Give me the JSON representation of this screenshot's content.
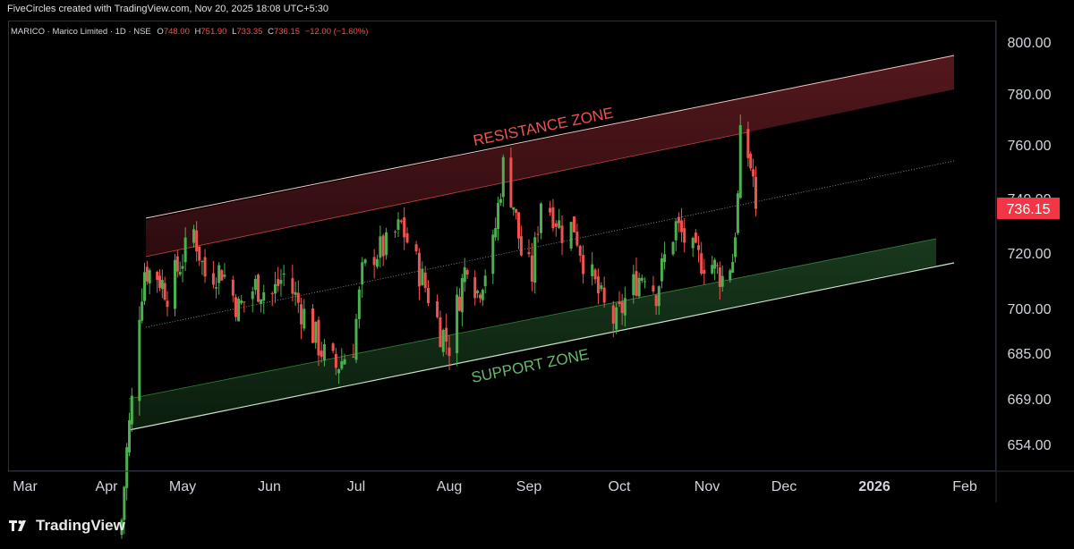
{
  "header": {
    "attribution": "FiveCircles created with TradingView.com, Nov 20, 2025 18:08 UTC+5:30"
  },
  "legend": {
    "symbol": "MARICO · Marico Limited · 1D · NSE",
    "open_label": "O",
    "open": "748.00",
    "high_label": "H",
    "high": "751.90",
    "low_label": "L",
    "low": "733.35",
    "close_label": "C",
    "close": "736.15",
    "change": "−12.00 (−1.60%)"
  },
  "annotations": {
    "resistance": "RESISTANCE ZONE",
    "support": "SUPPORT ZONE"
  },
  "price_label": "736.15",
  "footer": {
    "brand": "TradingView"
  },
  "colors": {
    "up": "#26a69a",
    "up_candle": "#4caf50",
    "down": "#ef5350",
    "resistance_fill": "#5c1a1f",
    "support_fill": "#163d1c",
    "price_badge": "#f23645"
  },
  "chart_data": {
    "type": "candlestick",
    "title": "MARICO · Marico Limited · 1D · NSE",
    "x_tick_labels": [
      "Mar",
      "Apr",
      "May",
      "Jun",
      "Jul",
      "Aug",
      "Sep",
      "Oct",
      "Nov",
      "Dec",
      "2026",
      "Feb"
    ],
    "y_tick_labels": [
      "800.00",
      "780.00",
      "760.00",
      "740.00",
      "720.00",
      "700.00",
      "685.00",
      "669.00",
      "654.00"
    ],
    "y_scale": "log",
    "ylim": [
      640,
      815
    ],
    "grid": false,
    "last_price": 736.15,
    "resistance_zone": {
      "lower_line": [
        [
          "2025-04-20",
          720
        ],
        [
          "2026-01-26",
          782
        ]
      ],
      "upper_line": [
        [
          "2025-04-20",
          732
        ],
        [
          "2026-01-26",
          795
        ]
      ]
    },
    "support_zone": {
      "upper_line": [
        [
          "2025-04-07",
          669
        ],
        [
          "2026-01-26",
          726
        ]
      ],
      "lower_line": [
        [
          "2025-04-07",
          661
        ],
        [
          "2026-01-26",
          717
        ]
      ]
    },
    "midline": [
      [
        "2025-04-20",
        696
      ],
      [
        "2026-01-26",
        754
      ]
    ],
    "candles_approx_close": [
      [
        "2025-04-07",
        630
      ],
      [
        "2025-04-09",
        652
      ],
      [
        "2025-04-11",
        668
      ],
      [
        "2025-04-14",
        700
      ],
      [
        "2025-04-16",
        714
      ],
      [
        "2025-04-21",
        712
      ],
      [
        "2025-04-25",
        706
      ],
      [
        "2025-05-01",
        718
      ],
      [
        "2025-05-05",
        728
      ],
      [
        "2025-05-09",
        712
      ],
      [
        "2025-05-15",
        714
      ],
      [
        "2025-05-21",
        700
      ],
      [
        "2025-05-27",
        708
      ],
      [
        "2025-06-02",
        705
      ],
      [
        "2025-06-06",
        712
      ],
      [
        "2025-06-12",
        700
      ],
      [
        "2025-06-16",
        692
      ],
      [
        "2025-06-20",
        684
      ],
      [
        "2025-06-24",
        680
      ],
      [
        "2025-06-30",
        688
      ],
      [
        "2025-07-03",
        712
      ],
      [
        "2025-07-07",
        720
      ],
      [
        "2025-07-11",
        722
      ],
      [
        "2025-07-16",
        730
      ],
      [
        "2025-07-21",
        716
      ],
      [
        "2025-07-25",
        705
      ],
      [
        "2025-07-29",
        693
      ],
      [
        "2025-08-01",
        688
      ],
      [
        "2025-08-05",
        705
      ],
      [
        "2025-08-08",
        718
      ],
      [
        "2025-08-12",
        706
      ],
      [
        "2025-08-18",
        722
      ],
      [
        "2025-08-22",
        752
      ],
      [
        "2025-08-26",
        738
      ],
      [
        "2025-08-29",
        720
      ],
      [
        "2025-09-02",
        712
      ],
      [
        "2025-09-05",
        740
      ],
      [
        "2025-09-09",
        735
      ],
      [
        "2025-09-12",
        728
      ],
      [
        "2025-09-16",
        730
      ],
      [
        "2025-09-19",
        718
      ],
      [
        "2025-09-23",
        708
      ],
      [
        "2025-09-26",
        700
      ],
      [
        "2025-09-30",
        695
      ],
      [
        "2025-10-03",
        703
      ],
      [
        "2025-10-07",
        710
      ],
      [
        "2025-10-10",
        714
      ],
      [
        "2025-10-14",
        706
      ],
      [
        "2025-10-17",
        718
      ],
      [
        "2025-10-21",
        730
      ],
      [
        "2025-10-24",
        725
      ],
      [
        "2025-10-28",
        718
      ],
      [
        "2025-11-03",
        716
      ],
      [
        "2025-11-07",
        711
      ],
      [
        "2025-11-11",
        718
      ],
      [
        "2025-11-13",
        740
      ],
      [
        "2025-11-14",
        762
      ],
      [
        "2025-11-17",
        756
      ],
      [
        "2025-11-19",
        748
      ],
      [
        "2025-11-20",
        736.15
      ]
    ]
  }
}
